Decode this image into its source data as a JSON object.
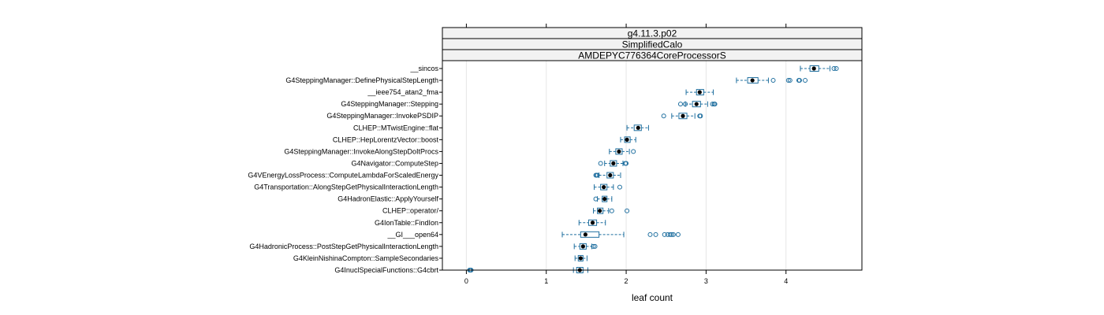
{
  "chart_data": {
    "type": "boxplot",
    "strips": [
      "g4.11.3.p02",
      "SimplifiedCalo",
      "AMDEPYC776364CoreProcessorS"
    ],
    "xlabel": "leaf count",
    "xlim": [
      -0.3,
      4.95
    ],
    "xticks": [
      0,
      1,
      2,
      3,
      4
    ],
    "xtick_labels": [
      "0",
      "1",
      "2",
      "3",
      "4"
    ],
    "colors": {
      "box": "#1f6f9f",
      "median": "#000000"
    },
    "categories": [
      "__sincos",
      "G4SteppingManager::DefinePhysicalStepLength",
      "__ieee754_atan2_fma",
      "G4SteppingManager::Stepping",
      "G4SteppingManager::InvokePSDIP",
      "CLHEP::MTwistEngine::flat",
      "CLHEP::HepLorentzVector::boost",
      "G4SteppingManager::InvokeAlongStepDoItProcs",
      "G4Navigator::ComputeStep",
      "G4VEnergyLossProcess::ComputeLambdaForScaledEnergy",
      "G4Transportation::AlongStepGetPhysicalInteractionLength",
      "G4HadronElastic::ApplyYourself",
      "CLHEP::operator/",
      "G4IonTable::FindIon",
      "__GI___open64",
      "G4HadronicProcess::PostStepGetPhysicalInteractionLength",
      "G4KleinNishinaCompton::SampleSecondaries",
      "G4InuclSpecialFunctions::G4cbrt"
    ],
    "boxes": [
      {
        "whisker_low": 4.18,
        "q1": 4.3,
        "median": 4.35,
        "q3": 4.41,
        "whisker_high": 4.55,
        "outliers": [
          4.6,
          4.63
        ]
      },
      {
        "whisker_low": 3.38,
        "q1": 3.52,
        "median": 3.58,
        "q3": 3.65,
        "whisker_high": 3.78,
        "outliers": [
          3.84,
          4.03,
          4.05,
          4.16,
          4.17,
          4.24
        ]
      },
      {
        "whisker_low": 2.75,
        "q1": 2.88,
        "median": 2.92,
        "q3": 2.97,
        "whisker_high": 3.09,
        "outliers": []
      },
      {
        "whisker_low": 2.74,
        "q1": 2.83,
        "median": 2.88,
        "q3": 2.93,
        "whisker_high": 3.02,
        "outliers": [
          2.68,
          2.74,
          3.08,
          3.1,
          3.11
        ]
      },
      {
        "whisker_low": 2.57,
        "q1": 2.66,
        "median": 2.71,
        "q3": 2.76,
        "whisker_high": 2.86,
        "outliers": [
          2.47,
          2.92,
          2.93
        ]
      },
      {
        "whisker_low": 2.01,
        "q1": 2.1,
        "median": 2.15,
        "q3": 2.19,
        "whisker_high": 2.28,
        "outliers": []
      },
      {
        "whisker_low": 1.93,
        "q1": 1.98,
        "median": 2.01,
        "q3": 2.05,
        "whisker_high": 2.12,
        "outliers": []
      },
      {
        "whisker_low": 1.79,
        "q1": 1.87,
        "median": 1.91,
        "q3": 1.95,
        "whisker_high": 2.04,
        "outliers": [
          2.09
        ]
      },
      {
        "whisker_low": 1.73,
        "q1": 1.8,
        "median": 1.84,
        "q3": 1.88,
        "whisker_high": 1.96,
        "outliers": [
          1.68,
          1.99,
          2.0
        ]
      },
      {
        "whisker_low": 1.66,
        "q1": 1.76,
        "median": 1.8,
        "q3": 1.84,
        "whisker_high": 1.93,
        "outliers": [
          1.62,
          1.63,
          1.64
        ]
      },
      {
        "whisker_low": 1.6,
        "q1": 1.68,
        "median": 1.72,
        "q3": 1.76,
        "whisker_high": 1.84,
        "outliers": [
          1.92
        ]
      },
      {
        "whisker_low": 1.64,
        "q1": 1.7,
        "median": 1.73,
        "q3": 1.76,
        "whisker_high": 1.82,
        "outliers": [
          1.62
        ]
      },
      {
        "whisker_low": 1.59,
        "q1": 1.64,
        "median": 1.67,
        "q3": 1.71,
        "whisker_high": 1.78,
        "outliers": [
          1.82,
          2.01
        ]
      },
      {
        "whisker_low": 1.41,
        "q1": 1.53,
        "median": 1.58,
        "q3": 1.63,
        "whisker_high": 1.74,
        "outliers": []
      },
      {
        "whisker_low": 1.2,
        "q1": 1.43,
        "median": 1.49,
        "q3": 1.66,
        "whisker_high": 1.97,
        "outliers": [
          2.3,
          2.37,
          2.48,
          2.52,
          2.55,
          2.57,
          2.59,
          2.65
        ]
      },
      {
        "whisker_low": 1.35,
        "q1": 1.42,
        "median": 1.46,
        "q3": 1.5,
        "whisker_high": 1.57,
        "outliers": [
          1.59,
          1.61
        ]
      },
      {
        "whisker_low": 1.36,
        "q1": 1.4,
        "median": 1.43,
        "q3": 1.46,
        "whisker_high": 1.51,
        "outliers": []
      },
      {
        "whisker_low": 1.34,
        "q1": 1.38,
        "median": 1.42,
        "q3": 1.46,
        "whisker_high": 1.52,
        "outliers": [
          0.04,
          0.05,
          0.06
        ]
      }
    ]
  }
}
